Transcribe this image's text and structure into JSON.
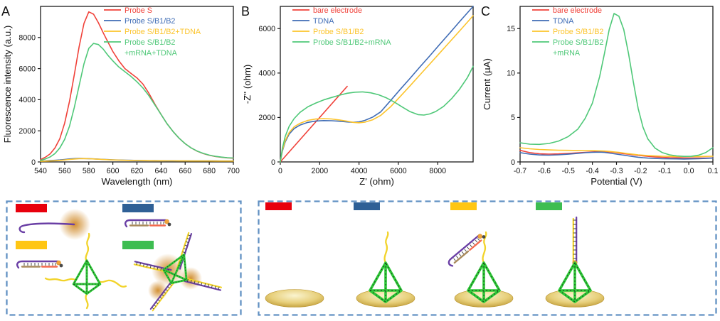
{
  "palette": {
    "red": "#f04139",
    "blue": "#3f6cb5",
    "yellow": "#fcc42c",
    "green": "#4fc878",
    "bar_red": "#e8000d",
    "bar_blue": "#2f6096",
    "bar_yellow": "#ffc613",
    "bar_green": "#3dbd51",
    "purple": "#6a3fa5",
    "brown": "#a98a5b",
    "salmon": "#f4694c",
    "strand_yellow": "#f2d32a",
    "tetra_green": "#2dc937",
    "glow": "#d08a28",
    "border_blue": "#6291c3",
    "fluorophore": "#f1a33a",
    "quencher": "#4a4a4a",
    "gold_light": "#faf4d0",
    "gold_mid": "#e7cf7a",
    "gold_dark": "#b8922a"
  },
  "chart_data": [
    {
      "id": "A",
      "letter": "A",
      "type": "line",
      "xlabel": "Wavelength (nm)",
      "ylabel": "Fluorescence intensity (a.u.)",
      "xlim": [
        540,
        700
      ],
      "ylim": [
        0,
        10000
      ],
      "xticks": {
        "v": [
          540,
          560,
          580,
          600,
          620,
          640,
          660,
          680,
          700
        ],
        "t": [
          "540",
          "560",
          "580",
          "600",
          "620",
          "640",
          "660",
          "680",
          "700"
        ]
      },
      "yticks": {
        "v": [
          0,
          2000,
          4000,
          6000,
          8000
        ],
        "t": [
          "0",
          "2000",
          "4000",
          "6000",
          "8000"
        ]
      },
      "legend_pos": {
        "x": 146,
        "y": 18
      },
      "legend": [
        {
          "label": "Probe S",
          "color": "red"
        },
        {
          "label": "Probe S/B1/B2",
          "color": "blue"
        },
        {
          "label": "Probe S/B1/B2+TDNA",
          "color": "yellow"
        },
        {
          "label": "Probe S/B1/B2",
          "label2": "+mRNA+TDNA",
          "color": "green"
        }
      ],
      "series": [
        {
          "name": "probe-s",
          "color": "red",
          "x": [
            540,
            544,
            548,
            552,
            556,
            560,
            564,
            568,
            572,
            576,
            580,
            584,
            588,
            592,
            596,
            600,
            605,
            610,
            615,
            620,
            625,
            630,
            635,
            640,
            645,
            650,
            655,
            660,
            665,
            670,
            675,
            680,
            685,
            690,
            695,
            700
          ],
          "y": [
            150,
            300,
            520,
            900,
            1500,
            2500,
            3900,
            5600,
            7400,
            8900,
            9650,
            9500,
            8950,
            8300,
            7700,
            7100,
            6500,
            6000,
            5700,
            5400,
            5000,
            4400,
            3700,
            3050,
            2450,
            1950,
            1520,
            1170,
            900,
            690,
            540,
            430,
            350,
            300,
            260,
            240
          ]
        },
        {
          "name": "probe-s-b1-b2",
          "color": "blue",
          "x": [
            540,
            544,
            548,
            552,
            556,
            560,
            564,
            568,
            572,
            576,
            580,
            584,
            588,
            592,
            596,
            600,
            605,
            610,
            615,
            620,
            625,
            630,
            635,
            640,
            645,
            650,
            655,
            660,
            665,
            670,
            675,
            680,
            685,
            690,
            695,
            700
          ],
          "y": [
            60,
            70,
            85,
            105,
            130,
            160,
            190,
            215,
            225,
            220,
            210,
            195,
            180,
            165,
            150,
            138,
            125,
            113,
            103,
            95,
            89,
            84,
            80,
            77,
            74,
            72,
            70,
            68,
            66,
            65,
            64,
            63,
            62,
            61,
            60,
            60
          ]
        },
        {
          "name": "probe-s-b1-b2-tdna",
          "color": "yellow",
          "x": [
            540,
            544,
            548,
            552,
            556,
            560,
            564,
            568,
            572,
            576,
            580,
            584,
            588,
            592,
            596,
            600,
            605,
            610,
            615,
            620,
            625,
            630,
            635,
            640,
            645,
            650,
            655,
            660,
            665,
            670,
            675,
            680,
            685,
            690,
            695,
            700
          ],
          "y": [
            40,
            48,
            60,
            78,
            100,
            128,
            158,
            188,
            210,
            215,
            205,
            190,
            173,
            157,
            142,
            130,
            117,
            106,
            97,
            90,
            84,
            79,
            75,
            72,
            69,
            67,
            65,
            63,
            61,
            60,
            59,
            58,
            57,
            56,
            56,
            55
          ]
        },
        {
          "name": "probe-s-b1-b2-mrna-tdna",
          "color": "green",
          "x": [
            540,
            544,
            548,
            552,
            556,
            560,
            564,
            568,
            572,
            576,
            580,
            584,
            588,
            592,
            596,
            600,
            605,
            610,
            615,
            620,
            625,
            630,
            635,
            640,
            645,
            650,
            655,
            660,
            665,
            670,
            675,
            680,
            685,
            690,
            695,
            700
          ],
          "y": [
            100,
            190,
            320,
            540,
            900,
            1450,
            2300,
            3500,
            4900,
            6300,
            7300,
            7620,
            7550,
            7250,
            6850,
            6500,
            6100,
            5800,
            5500,
            5150,
            4750,
            4250,
            3650,
            3050,
            2450,
            1950,
            1520,
            1170,
            900,
            700,
            550,
            440,
            360,
            310,
            270,
            250
          ]
        }
      ]
    },
    {
      "id": "B",
      "letter": "B",
      "type": "line",
      "xlabel": "Z' (ohm)",
      "ylabel": "-Z'' (ohm)",
      "xlim": [
        0,
        9800
      ],
      "ylim": [
        0,
        7000
      ],
      "xticks": {
        "v": [
          0,
          2000,
          4000,
          6000,
          8000
        ],
        "t": [
          "0",
          "2000",
          "4000",
          "6000",
          "8000"
        ]
      },
      "yticks": {
        "v": [
          0,
          2000,
          4000,
          6000
        ],
        "t": [
          "0",
          "2000",
          "4000",
          "6000"
        ]
      },
      "legend_pos": {
        "x": 74,
        "y": 18
      },
      "legend": [
        {
          "label": "bare electrode",
          "color": "red"
        },
        {
          "label": "TDNA",
          "color": "blue"
        },
        {
          "label": "Probe S/B1/B2",
          "color": "yellow"
        },
        {
          "label": "Probe S/B1/B2+mRNA",
          "color": "green"
        }
      ],
      "series": [
        {
          "name": "bare-electrode",
          "color": "red",
          "x": [
            0,
            3400
          ],
          "y": [
            0,
            3400
          ]
        },
        {
          "name": "tdna",
          "color": "blue",
          "x": [
            0,
            100,
            250,
            450,
            700,
            1000,
            1400,
            1800,
            2200,
            2600,
            3000,
            3400,
            3700,
            4000,
            4300,
            4700,
            5100,
            5600,
            6100,
            6600,
            7100,
            7600,
            8100,
            8600,
            9100,
            9500,
            9800
          ],
          "y": [
            0,
            480,
            900,
            1250,
            1500,
            1660,
            1780,
            1840,
            1860,
            1855,
            1830,
            1800,
            1785,
            1800,
            1870,
            2020,
            2250,
            2760,
            3270,
            3770,
            4280,
            4780,
            5290,
            5790,
            6300,
            6700,
            7000
          ]
        },
        {
          "name": "probe-s-b1-b2",
          "color": "yellow",
          "x": [
            0,
            100,
            250,
            450,
            700,
            1000,
            1400,
            1800,
            2200,
            2600,
            3000,
            3400,
            3700,
            4000,
            4300,
            4700,
            5100,
            5600,
            6100,
            6600,
            7100,
            7600,
            8100,
            8600,
            9100,
            9500,
            9800
          ],
          "y": [
            0,
            520,
            960,
            1320,
            1580,
            1740,
            1870,
            1930,
            1950,
            1935,
            1890,
            1830,
            1780,
            1760,
            1790,
            1900,
            2090,
            2480,
            2950,
            3430,
            3920,
            4410,
            4900,
            5390,
            5880,
            6280,
            6580
          ]
        },
        {
          "name": "probe-s-b1-b2-mrna",
          "color": "green",
          "x": [
            0,
            100,
            250,
            450,
            700,
            1000,
            1400,
            1800,
            2200,
            2600,
            3000,
            3400,
            3800,
            4200,
            4600,
            5000,
            5400,
            5800,
            6200,
            6600,
            7000,
            7300,
            7600,
            7900,
            8300,
            8700,
            9100,
            9500,
            9800
          ],
          "y": [
            0,
            600,
            1150,
            1600,
            1950,
            2230,
            2480,
            2650,
            2790,
            2900,
            3000,
            3090,
            3140,
            3150,
            3110,
            3020,
            2880,
            2690,
            2470,
            2260,
            2130,
            2110,
            2160,
            2270,
            2500,
            2840,
            3260,
            3780,
            4300
          ]
        }
      ]
    },
    {
      "id": "C",
      "letter": "C",
      "type": "line",
      "xlabel": "Potential (V)",
      "ylabel": "Current (µA)",
      "xlim": [
        -0.7,
        0.1
      ],
      "ylim": [
        0,
        17.5
      ],
      "xticks": {
        "v": [
          -0.7,
          -0.6,
          -0.5,
          -0.4,
          -0.3,
          -0.2,
          -0.1,
          0.0,
          0.1
        ],
        "t": [
          "-0.7",
          "-0.6",
          "-0.5",
          "-0.4",
          "-0.3",
          "-0.2",
          "-0.1",
          "0.0",
          "0.1"
        ]
      },
      "yticks": {
        "v": [
          0,
          5,
          10,
          15
        ],
        "t": [
          "0",
          "5",
          "10",
          "15"
        ]
      },
      "legend_pos": {
        "x": 74,
        "y": 18
      },
      "legend": [
        {
          "label": "bare electrode",
          "color": "red"
        },
        {
          "label": "TDNA",
          "color": "blue"
        },
        {
          "label": "Probe S/B1/B2",
          "color": "yellow"
        },
        {
          "label": "Probe S/B1/B2",
          "label2": "+mRNA",
          "color": "green"
        }
      ],
      "series": [
        {
          "name": "bare-electrode",
          "color": "red",
          "x": [
            -0.7,
            -0.66,
            -0.62,
            -0.58,
            -0.54,
            -0.5,
            -0.46,
            -0.43,
            -0.4,
            -0.37,
            -0.35,
            -0.33,
            -0.31,
            -0.29,
            -0.27,
            -0.25,
            -0.23,
            -0.21,
            -0.19,
            -0.17,
            -0.14,
            -0.11,
            -0.08,
            -0.05,
            -0.02,
            0.01,
            0.04,
            0.07,
            0.1
          ],
          "y": [
            1.3,
            1.05,
            0.92,
            0.88,
            0.9,
            0.95,
            1.02,
            1.08,
            1.13,
            1.16,
            1.16,
            1.13,
            1.08,
            1.0,
            0.93,
            0.87,
            0.8,
            0.74,
            0.68,
            0.63,
            0.57,
            0.52,
            0.48,
            0.46,
            0.45,
            0.44,
            0.44,
            0.44,
            0.45
          ]
        },
        {
          "name": "tdna",
          "color": "blue",
          "x": [
            -0.7,
            -0.66,
            -0.62,
            -0.58,
            -0.54,
            -0.5,
            -0.46,
            -0.43,
            -0.4,
            -0.37,
            -0.35,
            -0.33,
            -0.31,
            -0.29,
            -0.27,
            -0.25,
            -0.23,
            -0.21,
            -0.19,
            -0.17,
            -0.14,
            -0.11,
            -0.08,
            -0.05,
            -0.02,
            0.01,
            0.04,
            0.07,
            0.1
          ],
          "y": [
            1.05,
            0.88,
            0.78,
            0.76,
            0.8,
            0.87,
            0.97,
            1.04,
            1.09,
            1.1,
            1.07,
            1.0,
            0.92,
            0.84,
            0.76,
            0.68,
            0.6,
            0.53,
            0.47,
            0.43,
            0.39,
            0.36,
            0.35,
            0.34,
            0.33,
            0.34,
            0.36,
            0.39,
            0.43
          ]
        },
        {
          "name": "probe-s-b1-b2",
          "color": "yellow",
          "x": [
            -0.7,
            -0.66,
            -0.62,
            -0.58,
            -0.54,
            -0.5,
            -0.46,
            -0.43,
            -0.4,
            -0.37,
            -0.35,
            -0.33,
            -0.31,
            -0.29,
            -0.27,
            -0.25,
            -0.23,
            -0.21,
            -0.19,
            -0.17,
            -0.14,
            -0.11,
            -0.08,
            -0.05,
            -0.02,
            0.01,
            0.04,
            0.07,
            0.1
          ],
          "y": [
            1.6,
            1.48,
            1.4,
            1.35,
            1.32,
            1.3,
            1.29,
            1.28,
            1.27,
            1.25,
            1.22,
            1.18,
            1.13,
            1.07,
            1.0,
            0.93,
            0.86,
            0.8,
            0.75,
            0.71,
            0.67,
            0.64,
            0.62,
            0.61,
            0.6,
            0.6,
            0.61,
            0.62,
            0.64
          ]
        },
        {
          "name": "probe-s-b1-b2-mrna",
          "color": "green",
          "x": [
            -0.7,
            -0.66,
            -0.62,
            -0.58,
            -0.54,
            -0.5,
            -0.46,
            -0.43,
            -0.4,
            -0.37,
            -0.35,
            -0.33,
            -0.31,
            -0.29,
            -0.27,
            -0.25,
            -0.23,
            -0.21,
            -0.19,
            -0.17,
            -0.14,
            -0.11,
            -0.08,
            -0.05,
            -0.02,
            0.01,
            0.04,
            0.07,
            0.1
          ],
          "y": [
            2.15,
            2.0,
            1.97,
            2.08,
            2.35,
            2.85,
            3.7,
            4.9,
            6.6,
            9.6,
            12.2,
            14.9,
            16.7,
            16.4,
            14.9,
            12.2,
            9.0,
            6.0,
            3.9,
            2.6,
            1.55,
            1.05,
            0.8,
            0.68,
            0.62,
            0.63,
            0.75,
            1.05,
            1.6
          ]
        }
      ]
    }
  ],
  "schematics": {
    "left_box": {
      "description": "solution fluorescence mechanism",
      "stages": [
        "probe-s-free-fluorescent",
        "probe-s-b1-b2-quenched-duplex",
        "probe-s-b1-b2-with-tdna-quenched",
        "tdna-mrna-duplex-arms-fluorescent"
      ]
    },
    "right_box": {
      "description": "electrode assembly steps",
      "stages": [
        "bare-electrode",
        "tdna-on-electrode",
        "probe-duplex-plus-tdna",
        "mrna-duplex-on-tdna"
      ]
    }
  }
}
